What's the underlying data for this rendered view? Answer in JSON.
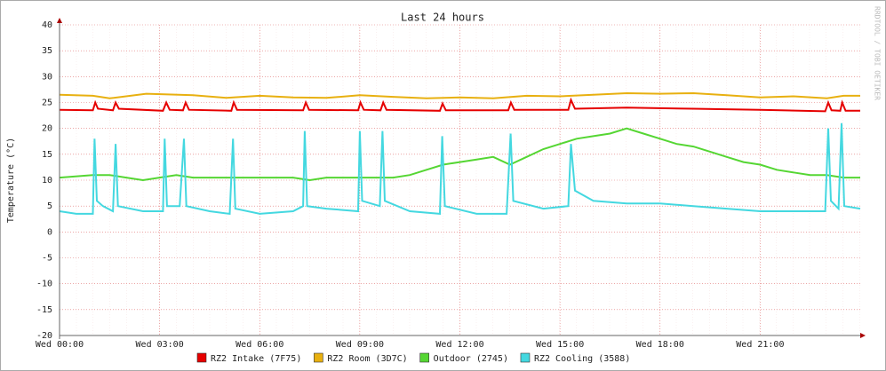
{
  "chart_data": {
    "type": "line",
    "title": "Last 24 hours",
    "y_label": "Temperature (°C)",
    "watermark": "RRDTOOL / TOBI OETIKER",
    "xlim": [
      0,
      24
    ],
    "ylim": [
      -20,
      40
    ],
    "xticks": [
      {
        "value": 0,
        "label": "Wed 00:00"
      },
      {
        "value": 3,
        "label": "Wed 03:00"
      },
      {
        "value": 6,
        "label": "Wed 06:00"
      },
      {
        "value": 9,
        "label": "Wed 09:00"
      },
      {
        "value": 12,
        "label": "Wed 12:00"
      },
      {
        "value": 15,
        "label": "Wed 15:00"
      },
      {
        "value": 18,
        "label": "Wed 18:00"
      },
      {
        "value": 21,
        "label": "Wed 21:00"
      }
    ],
    "yticks": [
      -20,
      -15,
      -10,
      -5,
      0,
      5,
      10,
      15,
      20,
      25,
      30,
      35,
      40
    ],
    "grid": true,
    "series": [
      {
        "name": "RZ2 Intake (7F75)",
        "color": "#e60000",
        "x": [
          0,
          1.0,
          1.07,
          1.15,
          1.6,
          1.68,
          1.78,
          3.1,
          3.2,
          3.3,
          3.7,
          3.78,
          3.88,
          5.15,
          5.22,
          5.32,
          7.3,
          7.38,
          7.48,
          8.95,
          9.02,
          9.12,
          9.62,
          9.7,
          9.8,
          11.4,
          11.48,
          11.58,
          13.45,
          13.53,
          13.63,
          15.25,
          15.33,
          15.45,
          17,
          19,
          21,
          22.95,
          23.04,
          23.14,
          23.4,
          23.46,
          23.56,
          24
        ],
        "values": [
          23.6,
          23.5,
          25,
          23.8,
          23.5,
          25,
          23.8,
          23.4,
          25,
          23.6,
          23.5,
          25,
          23.6,
          23.4,
          25,
          23.6,
          23.5,
          25,
          23.6,
          23.5,
          25,
          23.6,
          23.5,
          25,
          23.6,
          23.4,
          24.8,
          23.5,
          23.5,
          25,
          23.6,
          23.6,
          25.5,
          23.8,
          24,
          23.8,
          23.6,
          23.3,
          25,
          23.5,
          23.4,
          25,
          23.4,
          23.4
        ]
      },
      {
        "name": "RZ2 Room (3D7C)",
        "color": "#e8b010",
        "x": [
          0,
          1,
          1.5,
          2.6,
          4,
          5,
          6,
          7,
          8,
          9,
          10,
          11,
          12,
          13,
          14,
          15,
          16,
          17,
          18,
          19,
          20,
          21,
          22,
          23,
          23.5,
          24
        ],
        "values": [
          26.5,
          26.3,
          25.8,
          26.7,
          26.4,
          25.9,
          26.3,
          26,
          25.9,
          26.4,
          26.1,
          25.8,
          26,
          25.8,
          26.3,
          26.2,
          26.5,
          26.8,
          26.7,
          26.8,
          26.4,
          26,
          26.2,
          25.8,
          26.3,
          26.3
        ]
      },
      {
        "name": "Outdoor (2745)",
        "color": "#55d633",
        "x": [
          0,
          1,
          1.5,
          2,
          2.5,
          3,
          3.5,
          4,
          5,
          6,
          7,
          7.5,
          8,
          9,
          10,
          10.5,
          11,
          11.5,
          12,
          12.5,
          13,
          13.5,
          14,
          14.5,
          15,
          15.5,
          16,
          16.5,
          17,
          17.5,
          18,
          18.5,
          19,
          19.5,
          20,
          20.5,
          21,
          21.5,
          22,
          22.5,
          23,
          23.5,
          24
        ],
        "values": [
          10.5,
          11,
          11,
          10.5,
          10,
          10.5,
          11,
          10.5,
          10.5,
          10.5,
          10.5,
          10,
          10.5,
          10.5,
          10.5,
          11,
          12,
          13,
          13.5,
          14,
          14.5,
          13,
          14.5,
          16,
          17,
          18,
          18.5,
          19,
          20,
          19,
          18,
          17,
          16.5,
          15.5,
          14.5,
          13.5,
          13,
          12,
          11.5,
          11,
          11,
          10.5,
          10.5
        ]
      },
      {
        "name": "RZ2 Cooling (3588)",
        "color": "#44d8e0",
        "x": [
          0,
          0.5,
          1.0,
          1.05,
          1.12,
          1.3,
          1.6,
          1.68,
          1.75,
          2.5,
          3.1,
          3.15,
          3.22,
          3.6,
          3.73,
          3.8,
          4.5,
          5.1,
          5.2,
          5.27,
          6,
          7,
          7.3,
          7.35,
          7.42,
          8,
          8.95,
          9.0,
          9.07,
          9.6,
          9.68,
          9.75,
          10.5,
          11.4,
          11.47,
          11.55,
          12.5,
          13.4,
          13.52,
          13.6,
          14.5,
          15.25,
          15.33,
          15.45,
          16,
          17,
          18,
          19,
          20,
          21,
          22,
          22.95,
          23.04,
          23.12,
          23.35,
          23.44,
          23.52,
          24
        ],
        "values": [
          4,
          3.5,
          3.5,
          18,
          6,
          5,
          4,
          17,
          5,
          4,
          4,
          18,
          5,
          5,
          18,
          5,
          4,
          3.5,
          18,
          4.5,
          3.5,
          4,
          5,
          19.5,
          5,
          4.5,
          4,
          19.5,
          6,
          5,
          19.5,
          6,
          4,
          3.5,
          18.5,
          5,
          3.5,
          3.5,
          19,
          6,
          4.5,
          5,
          17,
          8,
          6,
          5.5,
          5.5,
          5,
          4.5,
          4,
          4,
          4,
          20,
          6,
          4.5,
          21,
          5,
          4.5
        ]
      }
    ]
  }
}
